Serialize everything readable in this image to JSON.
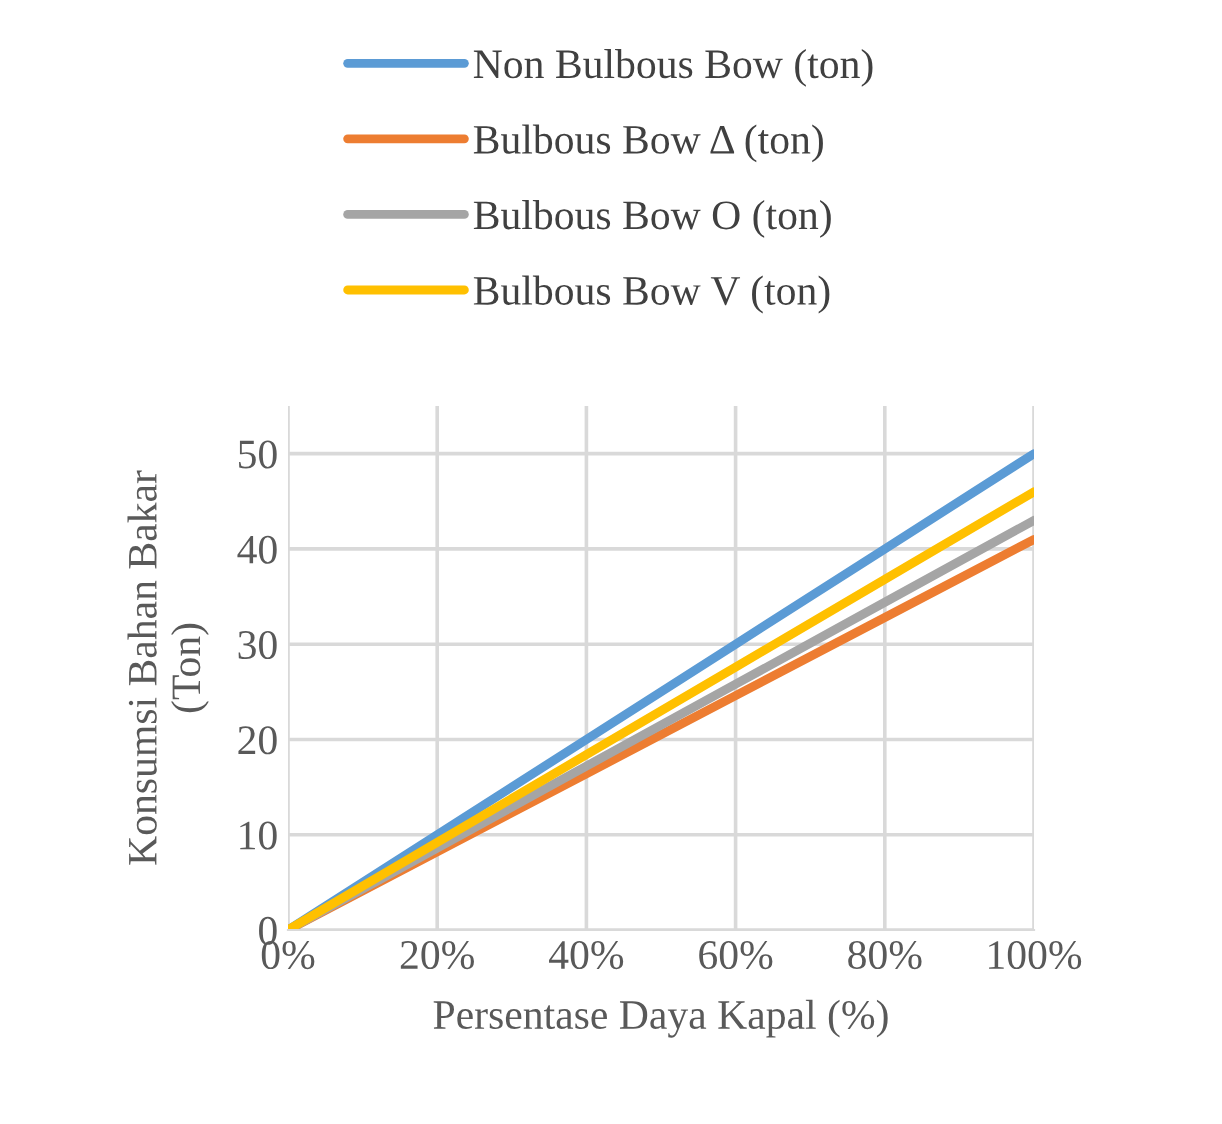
{
  "chart_data": {
    "type": "line",
    "xlabel": "Persentase Daya Kapal (%)",
    "ylabel": "Konsumsi Bahan Bakar\n(Ton)",
    "x": [
      0,
      20,
      40,
      60,
      80,
      100
    ],
    "series": [
      {
        "name": "Non Bulbous Bow (ton)",
        "color": "#5b9bd5",
        "values": [
          0,
          10,
          20,
          30,
          40,
          50
        ]
      },
      {
        "name": "Bulbous Bow Δ (ton)",
        "color": "#ed7d31",
        "values": [
          0,
          8.2,
          16.4,
          24.6,
          32.8,
          41
        ]
      },
      {
        "name": "Bulbous Bow O (ton)",
        "color": "#a5a5a5",
        "values": [
          0,
          8.6,
          17.2,
          25.8,
          34.4,
          43
        ]
      },
      {
        "name": "Bulbous Bow V (ton)",
        "color": "#ffc000",
        "values": [
          0,
          9.2,
          18.4,
          27.6,
          36.8,
          46
        ]
      }
    ],
    "xlim": [
      0,
      100
    ],
    "ylim": [
      0,
      55
    ],
    "xticks": [
      {
        "value": 0,
        "label": "0%"
      },
      {
        "value": 20,
        "label": "20%"
      },
      {
        "value": 40,
        "label": "40%"
      },
      {
        "value": 60,
        "label": "60%"
      },
      {
        "value": 80,
        "label": "80%"
      },
      {
        "value": 100,
        "label": "100%"
      }
    ],
    "yticks": [
      0,
      10,
      20,
      30,
      40,
      50
    ],
    "grid": true,
    "legend": "top",
    "marker": "none",
    "line_style": "solid"
  }
}
